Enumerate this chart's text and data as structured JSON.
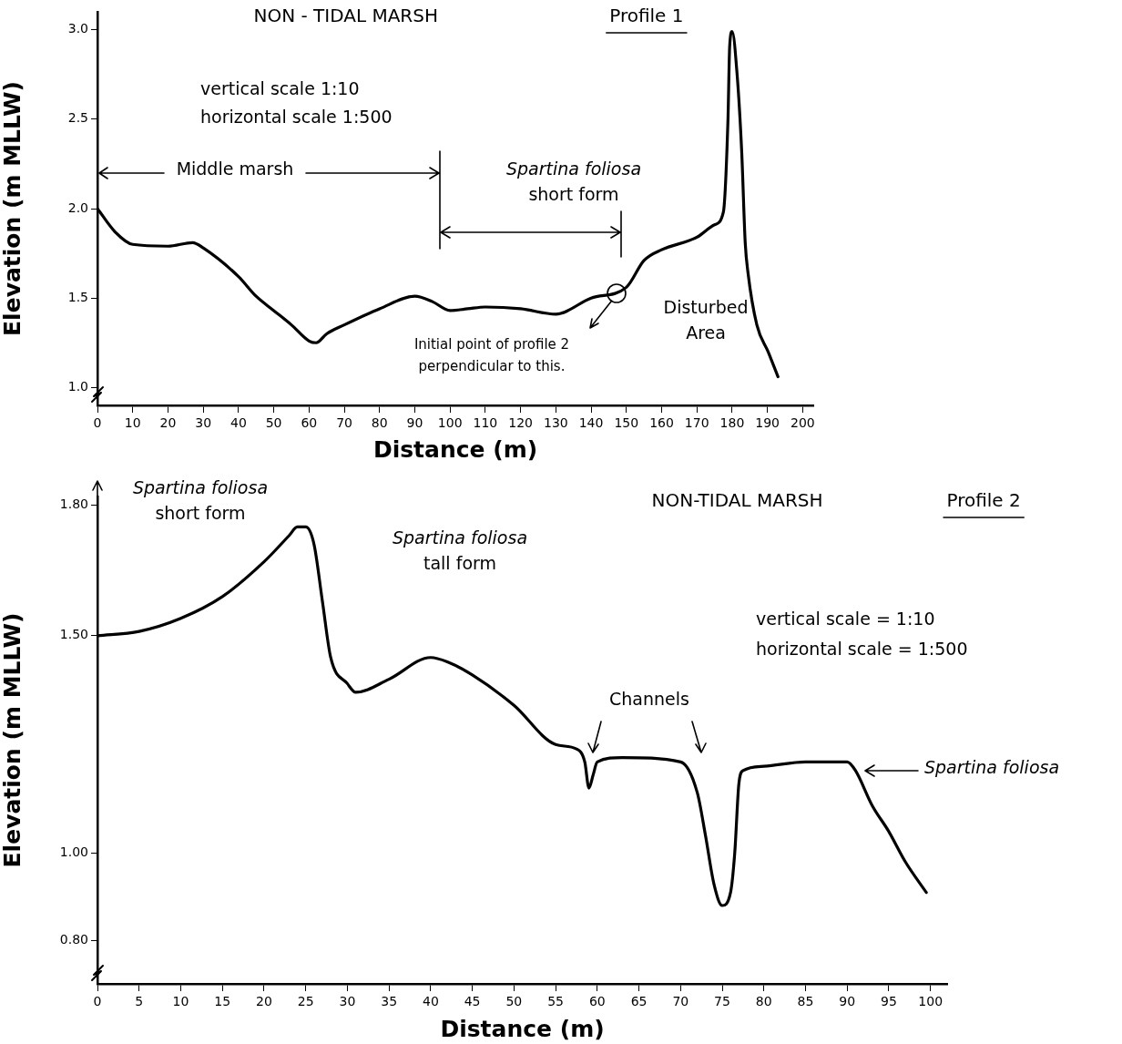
{
  "chart_data": [
    {
      "type": "line",
      "title": "NON - TIDAL MARSH",
      "subtitle": "Profile 1",
      "xlabel": "Distance (m)",
      "ylabel": "Elevation (m MLLW)",
      "x": [
        0,
        5,
        10,
        20,
        27,
        30,
        40,
        45,
        50,
        55,
        60,
        62,
        65,
        70,
        80,
        90,
        95,
        100,
        105,
        110,
        120,
        130,
        140,
        150,
        155,
        160,
        170,
        175,
        177.5,
        178.8,
        179.3,
        180,
        181.4,
        182.7,
        183.7,
        184.5,
        187,
        190.2,
        193
      ],
      "series": [
        {
          "color": "#000000",
          "values": [
            2.0,
            1.87,
            1.8,
            1.79,
            1.81,
            1.78,
            1.62,
            1.51,
            1.43,
            1.35,
            1.26,
            1.25,
            1.3,
            1.35,
            1.44,
            1.51,
            1.48,
            1.43,
            1.44,
            1.45,
            1.44,
            1.41,
            1.5,
            1.56,
            1.71,
            1.77,
            1.84,
            1.91,
            1.98,
            2.49,
            2.91,
            2.99,
            2.75,
            2.32,
            1.81,
            1.64,
            1.35,
            1.2,
            1.06
          ]
        }
      ],
      "xlim": [
        0,
        203
      ],
      "ylim": [
        0.9,
        3.1
      ],
      "xticks": [
        0,
        10,
        20,
        30,
        40,
        50,
        60,
        70,
        80,
        90,
        100,
        110,
        120,
        130,
        140,
        150,
        160,
        170,
        180,
        190,
        200
      ],
      "yticks": [
        {
          "value": 1,
          "label": "1.0"
        },
        {
          "value": 1.5,
          "label": "1.5"
        },
        {
          "value": 2,
          "label": "2.0"
        },
        {
          "value": 2.5,
          "label": "2.5"
        },
        {
          "value": 3,
          "label": "3.0"
        }
      ],
      "grid": false,
      "legend": false,
      "marker": "none",
      "line_style": "solid",
      "annotations": [
        "vertical scale 1:10",
        "horizontal scale 1:500",
        "Middle marsh",
        "Spartina foliosa\nshort form",
        "Initial point of profile 2\nperpendicular to this.",
        "Disturbed\nArea"
      ]
    },
    {
      "type": "line",
      "title": "NON-TIDAL MARSH",
      "subtitle": "Profile 2",
      "xlabel": "Distance (m)",
      "ylabel": "Elevation (m MLLW)",
      "x": [
        0,
        5,
        10,
        15,
        20,
        23,
        24,
        25,
        26,
        27,
        28,
        30,
        31,
        35,
        40,
        42,
        45,
        50,
        55,
        57.5,
        58.5,
        59,
        59.5,
        60,
        63,
        70,
        72,
        73,
        74,
        75,
        76,
        76.5,
        77,
        77.5,
        80,
        85,
        88,
        90,
        91,
        93,
        95,
        97,
        99.5
      ],
      "series": [
        {
          "color": "#000000",
          "values": [
            1.5,
            1.51,
            1.54,
            1.59,
            1.67,
            1.73,
            1.75,
            1.75,
            1.71,
            1.58,
            1.45,
            1.39,
            1.37,
            1.4,
            1.45,
            1.44,
            1.41,
            1.34,
            1.25,
            1.24,
            1.21,
            1.15,
            1.18,
            1.21,
            1.22,
            1.21,
            1.14,
            1.04,
            0.93,
            0.88,
            0.91,
            1.0,
            1.16,
            1.19,
            1.2,
            1.21,
            1.21,
            1.21,
            1.19,
            1.11,
            1.05,
            0.98,
            0.91
          ]
        }
      ],
      "xlim": [
        0,
        102
      ],
      "ylim": [
        0.7,
        1.82
      ],
      "xticks": [
        0,
        5,
        10,
        15,
        20,
        25,
        30,
        35,
        40,
        45,
        50,
        55,
        60,
        65,
        70,
        75,
        80,
        85,
        90,
        95,
        100
      ],
      "yticks": [
        {
          "value": 0.8,
          "label": "0.80"
        },
        {
          "value": 1,
          "label": "1.00"
        },
        {
          "value": 1.5,
          "label": "1.50"
        },
        {
          "value": 1.8,
          "label": "1.80"
        }
      ],
      "grid": false,
      "legend": false,
      "marker": "none",
      "line_style": "solid",
      "annotations": [
        "vertical scale = 1:10",
        "horizontal scale = 1:500",
        "Spartina foliosa\nshort form",
        "Spartina foliosa\ntall form",
        "Channels",
        "Spartina foliosa"
      ]
    }
  ]
}
